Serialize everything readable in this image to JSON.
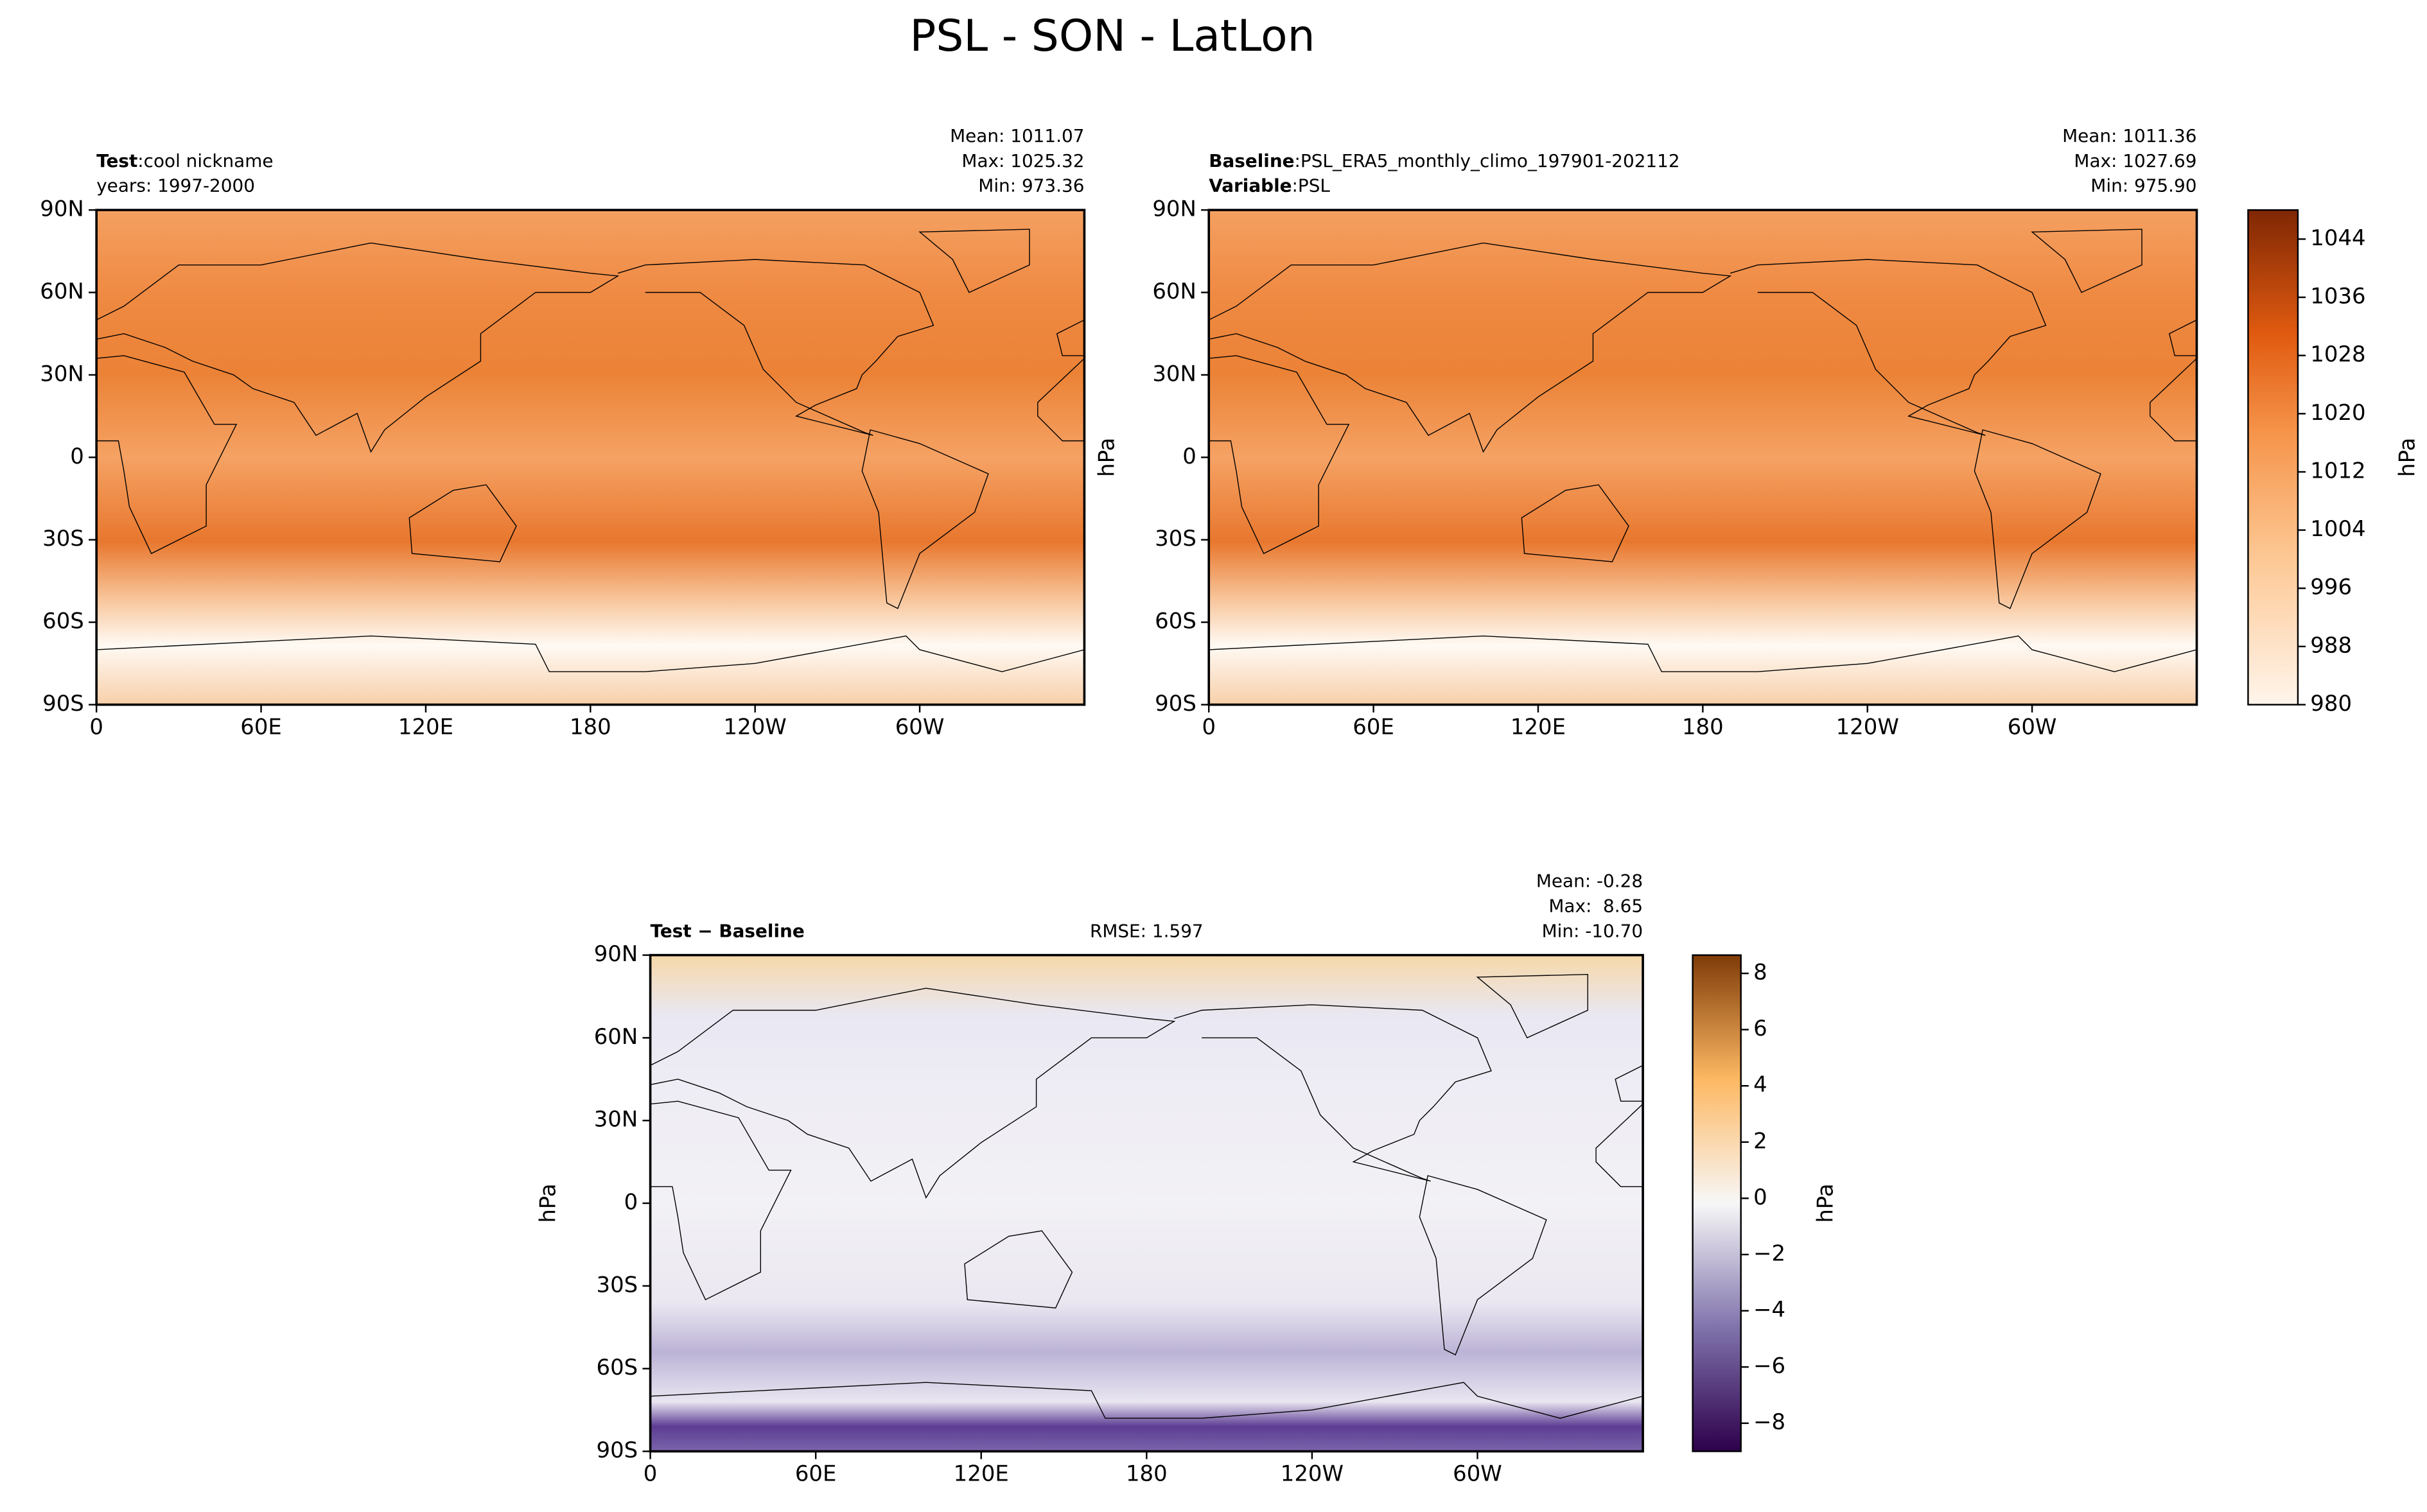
{
  "title": "PSL - SON - LatLon",
  "chart_data": [
    {
      "type": "contour-map",
      "lines": [
        {
          "bold": "Test",
          "text": ":cool nickname"
        },
        {
          "text": "years: 1997-2000"
        }
      ],
      "stats": [
        "Mean: 1011.07",
        "Max: 1025.32",
        "Min: 973.36"
      ],
      "xlim": [
        0,
        360
      ],
      "xticks": [
        0,
        {
          "value": 60,
          "label": "60E"
        },
        {
          "value": 120,
          "label": "120E"
        },
        180,
        {
          "value": 240,
          "label": "120W"
        },
        {
          "value": 300,
          "label": "60W"
        }
      ],
      "ylim": [
        -90,
        90
      ],
      "yticks": [
        {
          "value": 90,
          "label": "90N"
        },
        {
          "value": 60,
          "label": "60N"
        },
        {
          "value": 30,
          "label": "30N"
        },
        0,
        {
          "value": -30,
          "label": "30S"
        },
        {
          "value": -60,
          "label": "60S"
        },
        {
          "value": -90,
          "label": "90S"
        }
      ]
    },
    {
      "type": "contour-map",
      "lines": [
        {
          "bold": "Baseline",
          "text": ":PSL_ERA5_monthly_climo_197901-202112"
        },
        {
          "bold": "Variable",
          "text": ":PSL"
        }
      ],
      "stats": [
        "Mean: 1011.36",
        "Max: 1027.69",
        "Min: 975.90"
      ],
      "ylabel": "hPa",
      "xlim": [
        0,
        360
      ],
      "xticks": [
        0,
        {
          "value": 60,
          "label": "60E"
        },
        {
          "value": 120,
          "label": "120E"
        },
        180,
        {
          "value": 240,
          "label": "120W"
        },
        {
          "value": 300,
          "label": "60W"
        }
      ],
      "ylim": [
        -90,
        90
      ],
      "yticks": [
        {
          "value": 90,
          "label": "90N"
        },
        {
          "value": 60,
          "label": "60N"
        },
        {
          "value": 30,
          "label": "30N"
        },
        0,
        {
          "value": -30,
          "label": "30S"
        },
        {
          "value": -60,
          "label": "60S"
        },
        {
          "value": -90,
          "label": "90S"
        }
      ],
      "colorbar": {
        "label": "hPa",
        "lim": [
          980,
          1048
        ],
        "ticks": [
          980,
          988,
          996,
          1004,
          1012,
          1020,
          1028,
          1036,
          1044
        ]
      }
    },
    {
      "type": "contour-map",
      "lines": [
        {
          "bold": "Test − Baseline"
        }
      ],
      "center_text": "RMSE: 1.597",
      "stats": [
        "Mean: -0.28",
        "Max:  8.65",
        "Min: -10.70"
      ],
      "ylabel": "hPa",
      "xlim": [
        0,
        360
      ],
      "xticks": [
        0,
        {
          "value": 60,
          "label": "60E"
        },
        {
          "value": 120,
          "label": "120E"
        },
        180,
        {
          "value": 240,
          "label": "120W"
        },
        {
          "value": 300,
          "label": "60W"
        }
      ],
      "ylim": [
        -90,
        90
      ],
      "yticks": [
        {
          "value": 90,
          "label": "90N"
        },
        {
          "value": 60,
          "label": "60N"
        },
        {
          "value": 30,
          "label": "30N"
        },
        0,
        {
          "value": -30,
          "label": "30S"
        },
        {
          "value": -60,
          "label": "60S"
        },
        {
          "value": -90,
          "label": "90S"
        }
      ],
      "colorbar": {
        "label": "hPa",
        "lim": [
          -9,
          8.65
        ],
        "ticks": [
          {
            "value": -8,
            "label": "−8"
          },
          {
            "value": -6,
            "label": "−6"
          },
          {
            "value": -4,
            "label": "−4"
          },
          {
            "value": -2,
            "label": "−2"
          },
          0,
          2,
          4,
          6,
          8
        ]
      }
    }
  ]
}
